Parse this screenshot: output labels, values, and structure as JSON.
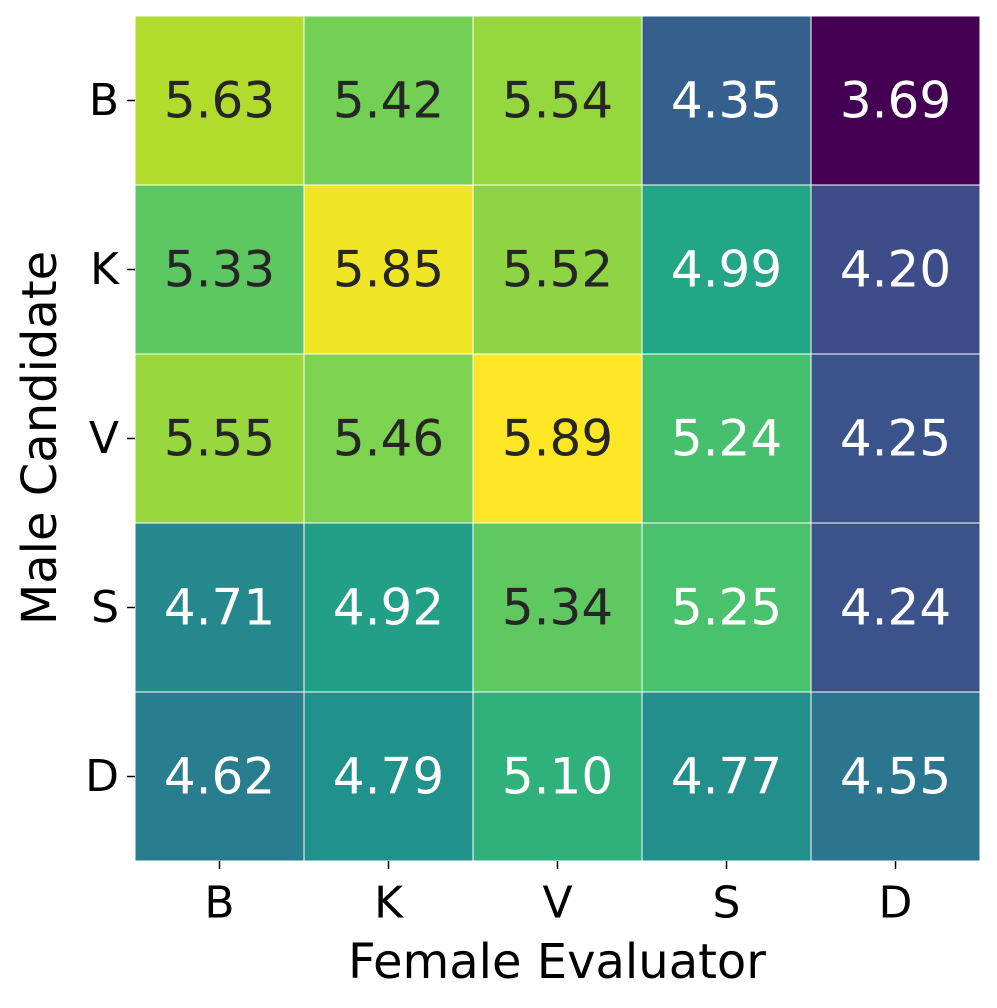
{
  "chart_data": {
    "type": "heatmap",
    "xlabel": "Female Evaluator",
    "ylabel": "Male Candidate",
    "x_categories": [
      "B",
      "K",
      "V",
      "S",
      "D"
    ],
    "y_categories": [
      "B",
      "K",
      "V",
      "S",
      "D"
    ],
    "values": [
      [
        5.63,
        5.42,
        5.54,
        4.35,
        3.69
      ],
      [
        5.33,
        5.85,
        5.52,
        4.99,
        4.2
      ],
      [
        5.55,
        5.46,
        5.89,
        5.24,
        4.25
      ],
      [
        4.71,
        4.92,
        5.34,
        5.25,
        4.24
      ],
      [
        4.62,
        4.79,
        5.1,
        4.77,
        4.55
      ]
    ],
    "value_labels": [
      [
        "5.63",
        "5.42",
        "5.54",
        "4.35",
        "3.69"
      ],
      [
        "5.33",
        "5.85",
        "5.52",
        "4.99",
        "4.20"
      ],
      [
        "5.55",
        "5.46",
        "5.89",
        "5.24",
        "4.25"
      ],
      [
        "4.71",
        "4.92",
        "5.34",
        "5.25",
        "4.24"
      ],
      [
        "4.62",
        "4.79",
        "5.10",
        "4.77",
        "4.55"
      ]
    ],
    "colormap": "viridis"
  }
}
